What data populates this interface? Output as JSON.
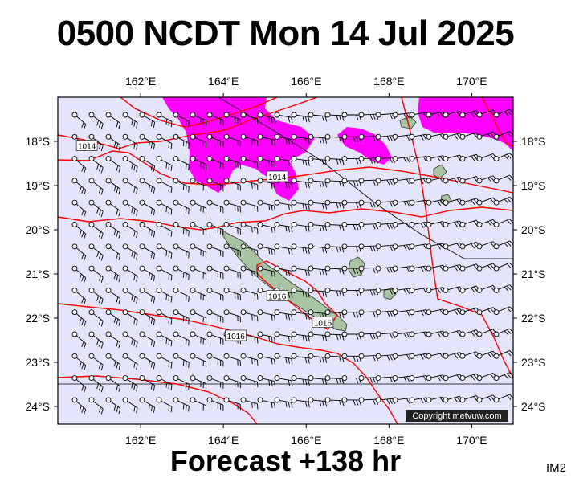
{
  "header": {
    "title": "0500 NCDT Mon 14 Jul 2025"
  },
  "footer": {
    "forecast": "Forecast +138 hr",
    "code": "IM2"
  },
  "map": {
    "copyright": "Copyright metvuw.com",
    "lon_ticks": [
      {
        "lon": 162,
        "label": "162°E"
      },
      {
        "lon": 164,
        "label": "164°E"
      },
      {
        "lon": 166,
        "label": "166°E"
      },
      {
        "lon": 168,
        "label": "168°E"
      },
      {
        "lon": 170,
        "label": "170°E"
      }
    ],
    "lat_ticks": [
      {
        "lat": -18,
        "label": "18°S"
      },
      {
        "lat": -19,
        "label": "19°S"
      },
      {
        "lat": -20,
        "label": "20°S"
      },
      {
        "lat": -21,
        "label": "21°S"
      },
      {
        "lat": -22,
        "label": "22°S"
      },
      {
        "lat": -23,
        "label": "23°S"
      },
      {
        "lat": -24,
        "label": "24°S"
      }
    ],
    "isobar_labels": [
      {
        "text": "1014",
        "lon": 160.7,
        "lat": -18.1
      },
      {
        "text": "1014",
        "lon": 165.3,
        "lat": -18.8
      },
      {
        "text": "1016",
        "lon": 164.3,
        "lat": -22.4
      },
      {
        "text": "1016",
        "lon": 165.3,
        "lat": -21.5
      },
      {
        "text": "1016",
        "lon": 166.4,
        "lat": -22.1
      }
    ],
    "colors": {
      "ocean": "#e4e4fa",
      "rain": "#ff00ff",
      "isobar": "#ff0000",
      "land": "#a9c4a2"
    }
  }
}
